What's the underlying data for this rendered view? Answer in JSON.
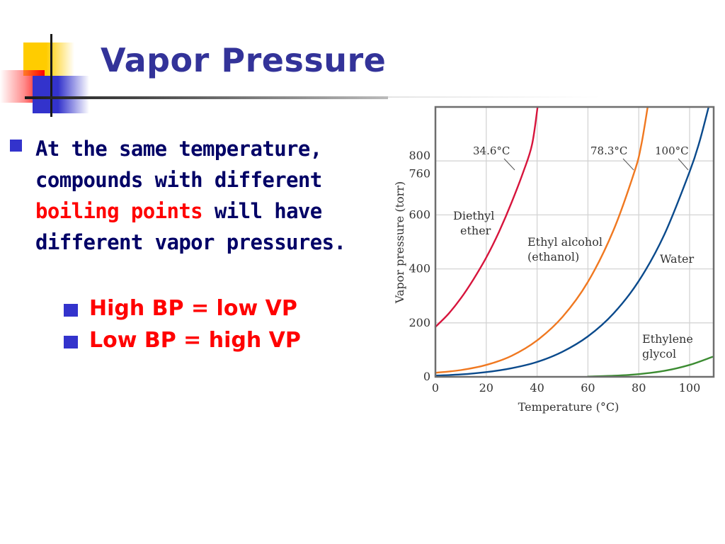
{
  "slide": {
    "title": "Vapor Pressure",
    "bullet": {
      "part1": "At the same temperature, compounds with different ",
      "highlight": "boiling points",
      "part2": " will have different vapor pressures."
    },
    "sub_bullets": [
      {
        "text": "High BP = low VP"
      },
      {
        "text": "Low BP = high VP"
      }
    ]
  },
  "colors": {
    "title": "#333399",
    "body_text": "#000066",
    "highlight": "#ff0000",
    "bullet": "#3333cc"
  },
  "chart_data": {
    "type": "line",
    "title": "",
    "xlabel": "Temperature (°C)",
    "ylabel": "Vapor pressure (torr)",
    "xlim": [
      0,
      109
    ],
    "ylim": [
      0,
      1000
    ],
    "x_ticks": [
      0,
      20,
      40,
      60,
      80,
      100
    ],
    "y_ticks": [
      0,
      200,
      400,
      600,
      760,
      800
    ],
    "grid": true,
    "legend": "inline labels",
    "series": [
      {
        "name": "Diethyl ether",
        "label_lines": [
          "Diethyl",
          "ether"
        ],
        "color": "#d7143c",
        "boiling_point_label": "34.6°C",
        "x": [
          0,
          5,
          10,
          15,
          20,
          25,
          30,
          34.6,
          38,
          40.2
        ],
        "y": [
          185,
          232,
          291,
          362,
          442,
          537,
          647,
          760,
          860,
          1000
        ]
      },
      {
        "name": "Ethyl alcohol (ethanol)",
        "label_lines": [
          "Ethyl alcohol",
          "(ethanol)"
        ],
        "color": "#f07820",
        "boiling_point_label": "78.3°C",
        "x": [
          0,
          10,
          20,
          30,
          40,
          50,
          60,
          70,
          78.3,
          81,
          83.5
        ],
        "y": [
          15,
          25,
          44,
          78,
          135,
          222,
          352,
          542,
          760,
          860,
          1000
        ]
      },
      {
        "name": "Water",
        "label_lines": [
          "Water"
        ],
        "color": "#0a4a8c",
        "boiling_point_label": "100°C",
        "x": [
          0,
          10,
          20,
          30,
          40,
          50,
          60,
          70,
          80,
          90,
          100,
          104,
          107.5
        ],
        "y": [
          4.6,
          9,
          17.5,
          32,
          55,
          93,
          150,
          234,
          355,
          526,
          760,
          875,
          1000
        ]
      },
      {
        "name": "Ethylene glycol",
        "label_lines": [
          "Ethylene",
          "glycol"
        ],
        "color": "#3c8c32",
        "x": [
          60,
          70,
          80,
          90,
          100,
          109
        ],
        "y": [
          1,
          4,
          10,
          22,
          44,
          74
        ]
      }
    ]
  }
}
